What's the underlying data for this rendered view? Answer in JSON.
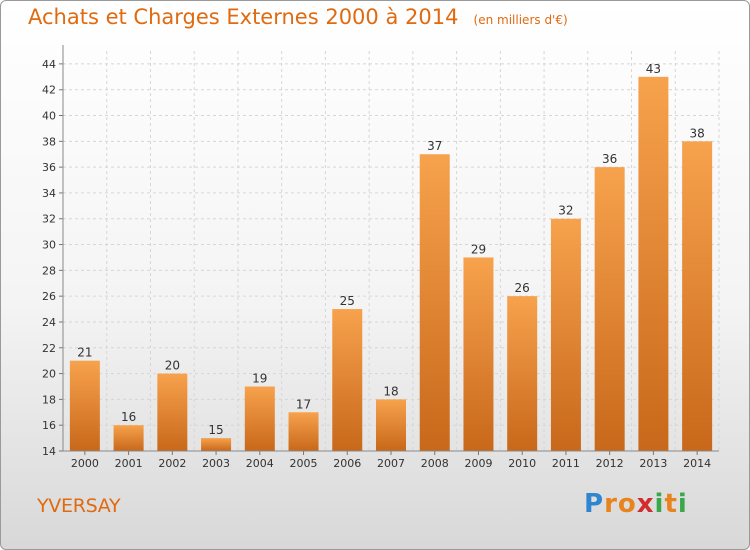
{
  "chart_data": {
    "type": "bar",
    "title": "Achats et Charges Externes 2000 à 2014",
    "subtitle": "(en milliers d'€)",
    "categories": [
      "2000",
      "2001",
      "2002",
      "2003",
      "2004",
      "2005",
      "2006",
      "2007",
      "2008",
      "2009",
      "2010",
      "2011",
      "2012",
      "2013",
      "2014"
    ],
    "values": [
      21,
      16,
      20,
      15,
      19,
      17,
      25,
      18,
      37,
      29,
      26,
      32,
      36,
      43,
      38
    ],
    "ylim": [
      14,
      45
    ],
    "yticks": [
      14,
      16,
      18,
      20,
      22,
      24,
      26,
      28,
      30,
      32,
      34,
      36,
      38,
      40,
      42,
      44
    ],
    "grid": true,
    "bar_color": "#f08c30",
    "legend": "none"
  },
  "footer": {
    "town": "YVERSAY",
    "logo_letters": [
      {
        "ch": "P",
        "color": "#2e86d0"
      },
      {
        "ch": "r",
        "color": "#e8831e"
      },
      {
        "ch": "o",
        "color": "#e8831e"
      },
      {
        "ch": "x",
        "color": "#d22d2d"
      },
      {
        "ch": "i",
        "color": "#3aa84a"
      },
      {
        "ch": "t",
        "color": "#e8831e"
      },
      {
        "ch": "i",
        "color": "#3aa84a"
      }
    ]
  },
  "colors": {
    "accent": "#e06a10",
    "bar": "#f08c30",
    "bar_dark": "#c8681a"
  }
}
